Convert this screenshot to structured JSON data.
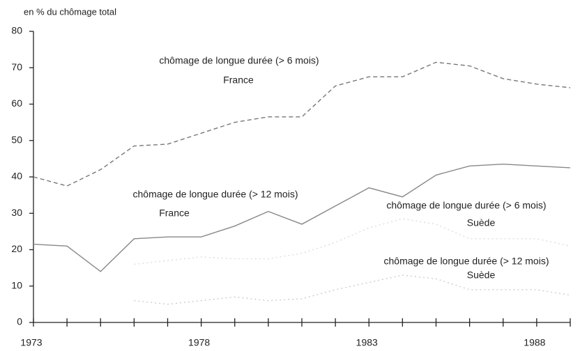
{
  "chart_data": {
    "type": "line",
    "y_axis_label": "en % du chômage total",
    "xlim": [
      1973,
      1989
    ],
    "xticks": [
      1973,
      1978,
      1983,
      1988
    ],
    "xminorticks": [
      1974,
      1975,
      1976,
      1977,
      1979,
      1980,
      1981,
      1982,
      1984,
      1985,
      1986,
      1987,
      1989
    ],
    "ylim": [
      0,
      80
    ],
    "yticks": [
      0,
      10,
      20,
      30,
      40,
      50,
      60,
      70,
      80
    ],
    "series": [
      {
        "name": [
          "chômage de longue durée (> 6 mois)",
          "France"
        ],
        "color": "#777777",
        "style": "dashed",
        "x": [
          1973,
          1974,
          1975,
          1976,
          1977,
          1978,
          1979,
          1980,
          1981,
          1982,
          1983,
          1984,
          1985,
          1986,
          1987,
          1988,
          1989
        ],
        "values": [
          40,
          37.5,
          42,
          48.5,
          49,
          52,
          55,
          56.5,
          56.5,
          65,
          67.5,
          67.5,
          71.5,
          70.5,
          67,
          65.5,
          64.5
        ]
      },
      {
        "name": [
          "chômage de longue durée (> 12 mois)",
          "France"
        ],
        "color": "#888888",
        "style": "solid",
        "x": [
          1973,
          1974,
          1975,
          1976,
          1977,
          1978,
          1979,
          1980,
          1981,
          1982,
          1983,
          1984,
          1985,
          1986,
          1987,
          1988,
          1989
        ],
        "values": [
          21.5,
          21,
          14,
          23,
          23.5,
          23.5,
          26.5,
          30.5,
          27,
          32,
          37,
          34.5,
          40.5,
          43,
          43.5,
          43,
          42.5
        ]
      },
      {
        "name": [
          "chômage de longue durée (> 6 mois)",
          "Suède"
        ],
        "color": "#dddddd",
        "style": "dotted",
        "x": [
          1976,
          1977,
          1978,
          1979,
          1980,
          1981,
          1982,
          1983,
          1984,
          1985,
          1986,
          1987,
          1988,
          1989
        ],
        "values": [
          16,
          17,
          18,
          17.5,
          17.5,
          19,
          22,
          26,
          28.5,
          27,
          23,
          23,
          23,
          21
        ]
      },
      {
        "name": [
          "chômage de longue durée (> 12 mois)",
          "Suède"
        ],
        "color": "#cccccc",
        "style": "dotted",
        "x": [
          1976,
          1977,
          1978,
          1979,
          1980,
          1981,
          1982,
          1983,
          1984,
          1985,
          1986,
          1987,
          1988,
          1989
        ],
        "values": [
          6,
          5,
          6,
          7,
          6,
          6.5,
          9,
          11,
          13,
          12,
          9,
          9,
          9,
          7.5
        ]
      }
    ]
  }
}
